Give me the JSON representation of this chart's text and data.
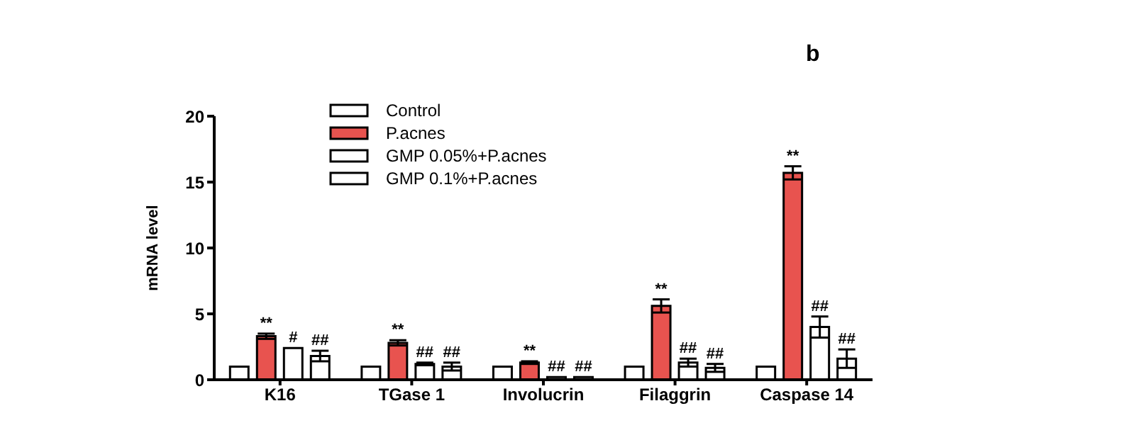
{
  "chart_data": {
    "type": "bar",
    "title": "b",
    "ylabel": "mRNA level",
    "categories": [
      "K16",
      "TGase 1",
      "Involucrin",
      "Filaggrin",
      "Caspase 14"
    ],
    "series": [
      {
        "name": "Control",
        "color": "#ffffff",
        "values": [
          1,
          1,
          1,
          1,
          1
        ]
      },
      {
        "name": "P.acnes",
        "color": "#e8534f",
        "values": [
          3.3,
          2.8,
          1.3,
          5.6,
          15.7
        ],
        "errors": [
          0.2,
          0.2,
          0.1,
          0.5,
          0.5
        ],
        "value_labels": [
          "**",
          "**",
          "**",
          "**",
          "**"
        ]
      },
      {
        "name": "GMP 0.05%+P.acnes",
        "color": "#ffffff",
        "values": [
          2.4,
          1.2,
          0.2,
          1.3,
          4.0
        ],
        "errors": [
          null,
          0.1,
          null,
          0.3,
          0.8
        ],
        "value_labels": [
          "#",
          "##",
          "##",
          "##",
          "##"
        ]
      },
      {
        "name": "GMP 0.1%+P.acnes",
        "color": "#ffffff",
        "values": [
          1.8,
          1.0,
          0.2,
          0.9,
          1.6
        ],
        "errors": [
          0.4,
          0.3,
          null,
          0.3,
          0.7
        ],
        "value_labels": [
          "##",
          "##",
          "##",
          "##",
          "##"
        ]
      }
    ],
    "ylim": [
      0,
      20
    ],
    "yticks": [
      0,
      5,
      10,
      15,
      20
    ],
    "legend": "top left"
  }
}
